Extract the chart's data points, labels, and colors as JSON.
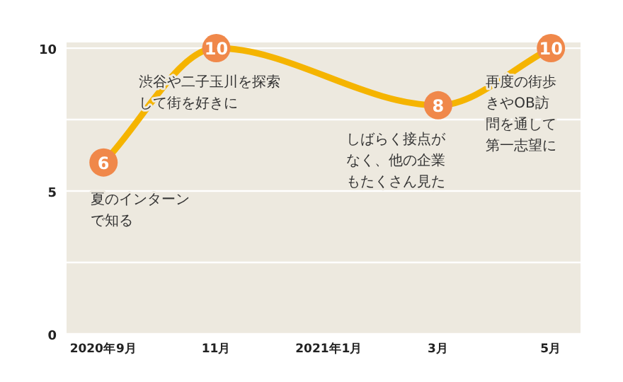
{
  "chart_data": {
    "type": "line",
    "x": [
      "2020-09",
      "2020-11",
      "2021-03",
      "2021-05"
    ],
    "series": [
      {
        "color": "#f5b400",
        "values": [
          6,
          10,
          8,
          10
        ]
      }
    ],
    "data_labels": true,
    "marker": "circle",
    "xlim": [
      "2020-08-12",
      "2021-05-17"
    ],
    "xticks": [
      {
        "value": "2020-09",
        "label": "2020年9月"
      },
      {
        "value": "2020-11",
        "label": "11月"
      },
      {
        "value": "2021-01",
        "label": "2021年1月"
      },
      {
        "value": "2021-03",
        "label": "3月"
      },
      {
        "value": "2021-05",
        "label": "5月"
      }
    ],
    "ylim": [
      0,
      10.2
    ],
    "yticks": [
      0,
      {
        "value": 2.5,
        "label": null
      },
      5,
      {
        "value": 7.5,
        "label": null
      },
      10
    ],
    "grid": "y",
    "annotations": [
      {
        "text": "夏のインターンで知る",
        "x": "2020-09",
        "y": 6
      },
      {
        "text": "渋谷や二子玉川を探索して街を好きに",
        "x": "2020-11",
        "y": 10
      },
      {
        "text": "しばらく接点がなく、他の企業もたくさん見た",
        "x": "2021-03",
        "y": 8
      },
      {
        "text": "再度の街歩きやOB訪問を通して第一志望に",
        "x": "2021-05",
        "y": 10
      }
    ]
  }
}
